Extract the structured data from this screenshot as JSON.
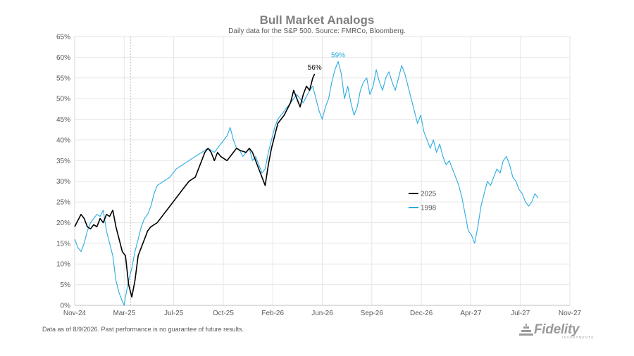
{
  "footnote": "Data as of 8/9/2026. Past performance is no guarantee of future results.",
  "logo": {
    "text": "Fidelity",
    "subtext": "INVESTMENTS",
    "icon": "fidelity-pyramid-icon",
    "color": "#9a9a9a"
  },
  "chart_data": {
    "type": "line",
    "title": "Bull Market Analogs",
    "subtitle": "Daily data for the S&P 500.  Source: FMRCo, Bloomberg.",
    "xlabel": "",
    "ylabel": "",
    "ylim": [
      0,
      65
    ],
    "y_tick_labels": [
      "0%",
      "5%",
      "10%",
      "15%",
      "20%",
      "25%",
      "30%",
      "35%",
      "40%",
      "45%",
      "50%",
      "55%",
      "60%",
      "65%"
    ],
    "x_tick_labels": [
      "Nov-24",
      "Mar-25",
      "Jul-25",
      "Oct-25",
      "Feb-26",
      "Jun-26",
      "Sep-26",
      "Dec-26",
      "Apr-27",
      "Jul-27",
      "Nov-27"
    ],
    "x_unit": "trading days since Nov-24",
    "xlim": [
      0,
      780
    ],
    "x_ticks": [
      0,
      78,
      156,
      234,
      312,
      390,
      468,
      546,
      624,
      702,
      780
    ],
    "grid": true,
    "vertical_marker": {
      "x": 88,
      "style": "dashed"
    },
    "legend": {
      "position": "right-middle",
      "entries": [
        "2025",
        "1998"
      ]
    },
    "series": [
      {
        "name": "2025",
        "color": "#000000",
        "points": [
          [
            0,
            19
          ],
          [
            5,
            20.5
          ],
          [
            10,
            22
          ],
          [
            15,
            21
          ],
          [
            20,
            19
          ],
          [
            25,
            18.5
          ],
          [
            30,
            19.5
          ],
          [
            35,
            19
          ],
          [
            40,
            21
          ],
          [
            45,
            20
          ],
          [
            50,
            22
          ],
          [
            55,
            21.5
          ],
          [
            60,
            23
          ],
          [
            65,
            19
          ],
          [
            70,
            16
          ],
          [
            75,
            13
          ],
          [
            80,
            12
          ],
          [
            85,
            5
          ],
          [
            90,
            2
          ],
          [
            95,
            6
          ],
          [
            100,
            12
          ],
          [
            105,
            14
          ],
          [
            110,
            16
          ],
          [
            115,
            18
          ],
          [
            120,
            19
          ],
          [
            130,
            20
          ],
          [
            140,
            22
          ],
          [
            150,
            24
          ],
          [
            155,
            25
          ],
          [
            160,
            26
          ],
          [
            170,
            28
          ],
          [
            180,
            30
          ],
          [
            190,
            31
          ],
          [
            200,
            35
          ],
          [
            205,
            37
          ],
          [
            210,
            38
          ],
          [
            215,
            37
          ],
          [
            220,
            35
          ],
          [
            225,
            37
          ],
          [
            230,
            36
          ],
          [
            240,
            35
          ],
          [
            250,
            37
          ],
          [
            255,
            38
          ],
          [
            260,
            37.5
          ],
          [
            270,
            37
          ],
          [
            275,
            38
          ],
          [
            280,
            37
          ],
          [
            285,
            35
          ],
          [
            290,
            33
          ],
          [
            295,
            31
          ],
          [
            300,
            29
          ],
          [
            305,
            34
          ],
          [
            310,
            38
          ],
          [
            315,
            41
          ],
          [
            320,
            44
          ],
          [
            330,
            46
          ],
          [
            340,
            49
          ],
          [
            345,
            52
          ],
          [
            350,
            50
          ],
          [
            355,
            48
          ],
          [
            360,
            51
          ],
          [
            365,
            53
          ],
          [
            370,
            52
          ],
          [
            375,
            55
          ],
          [
            378,
            56
          ]
        ]
      },
      {
        "name": "1998",
        "color": "#29abe2",
        "points": [
          [
            0,
            16
          ],
          [
            5,
            14
          ],
          [
            10,
            13
          ],
          [
            15,
            15
          ],
          [
            20,
            18
          ],
          [
            25,
            20
          ],
          [
            30,
            21
          ],
          [
            35,
            22
          ],
          [
            40,
            21.5
          ],
          [
            45,
            23
          ],
          [
            50,
            18
          ],
          [
            55,
            15
          ],
          [
            60,
            12
          ],
          [
            65,
            6
          ],
          [
            70,
            3
          ],
          [
            75,
            1
          ],
          [
            78,
            0
          ],
          [
            80,
            2
          ],
          [
            85,
            6
          ],
          [
            90,
            9
          ],
          [
            95,
            13
          ],
          [
            100,
            16
          ],
          [
            105,
            19
          ],
          [
            110,
            21
          ],
          [
            115,
            22
          ],
          [
            120,
            24
          ],
          [
            125,
            27
          ],
          [
            130,
            29
          ],
          [
            140,
            30
          ],
          [
            150,
            31
          ],
          [
            160,
            33
          ],
          [
            170,
            34
          ],
          [
            180,
            35
          ],
          [
            190,
            36
          ],
          [
            200,
            37
          ],
          [
            210,
            38
          ],
          [
            220,
            37
          ],
          [
            230,
            39
          ],
          [
            240,
            41
          ],
          [
            245,
            43
          ],
          [
            250,
            40
          ],
          [
            255,
            38
          ],
          [
            260,
            37.5
          ],
          [
            265,
            36
          ],
          [
            270,
            37
          ],
          [
            275,
            38
          ],
          [
            280,
            35
          ],
          [
            285,
            36
          ],
          [
            290,
            34
          ],
          [
            295,
            32
          ],
          [
            300,
            33
          ],
          [
            305,
            37
          ],
          [
            310,
            40
          ],
          [
            315,
            43
          ],
          [
            320,
            45
          ],
          [
            330,
            47
          ],
          [
            340,
            49
          ],
          [
            350,
            51
          ],
          [
            360,
            49
          ],
          [
            370,
            52
          ],
          [
            375,
            53
          ],
          [
            380,
            50
          ],
          [
            385,
            47
          ],
          [
            390,
            45
          ],
          [
            395,
            48
          ],
          [
            400,
            50
          ],
          [
            405,
            54
          ],
          [
            410,
            57
          ],
          [
            415,
            59
          ],
          [
            420,
            56
          ],
          [
            425,
            50
          ],
          [
            430,
            53
          ],
          [
            435,
            49
          ],
          [
            440,
            46
          ],
          [
            445,
            48
          ],
          [
            450,
            52
          ],
          [
            455,
            54
          ],
          [
            460,
            55
          ],
          [
            465,
            51
          ],
          [
            470,
            53
          ],
          [
            475,
            57
          ],
          [
            480,
            54
          ],
          [
            485,
            52
          ],
          [
            490,
            55
          ],
          [
            495,
            56.5
          ],
          [
            500,
            54
          ],
          [
            505,
            52
          ],
          [
            510,
            55
          ],
          [
            515,
            58
          ],
          [
            520,
            56
          ],
          [
            525,
            53
          ],
          [
            530,
            50
          ],
          [
            535,
            47
          ],
          [
            540,
            44
          ],
          [
            545,
            46
          ],
          [
            550,
            42
          ],
          [
            555,
            40
          ],
          [
            560,
            38
          ],
          [
            565,
            40
          ],
          [
            570,
            37
          ],
          [
            575,
            39
          ],
          [
            580,
            36
          ],
          [
            585,
            34
          ],
          [
            590,
            35
          ],
          [
            595,
            33
          ],
          [
            600,
            31
          ],
          [
            605,
            29
          ],
          [
            610,
            26
          ],
          [
            615,
            22
          ],
          [
            620,
            18
          ],
          [
            625,
            17
          ],
          [
            630,
            15
          ],
          [
            635,
            19
          ],
          [
            640,
            24
          ],
          [
            645,
            27
          ],
          [
            650,
            30
          ],
          [
            655,
            29
          ],
          [
            660,
            31
          ],
          [
            665,
            33
          ],
          [
            670,
            32
          ],
          [
            675,
            35
          ],
          [
            680,
            36
          ],
          [
            685,
            34
          ],
          [
            690,
            31
          ],
          [
            695,
            30
          ],
          [
            700,
            28
          ],
          [
            705,
            27
          ],
          [
            710,
            25
          ],
          [
            715,
            24
          ],
          [
            720,
            25
          ],
          [
            725,
            27
          ],
          [
            730,
            26
          ]
        ]
      }
    ],
    "annotations": [
      {
        "text": "56%",
        "x": 378,
        "y": 56,
        "color": "#000000"
      },
      {
        "text": "59%",
        "x": 415,
        "y": 59,
        "color": "#29abe2"
      }
    ]
  }
}
